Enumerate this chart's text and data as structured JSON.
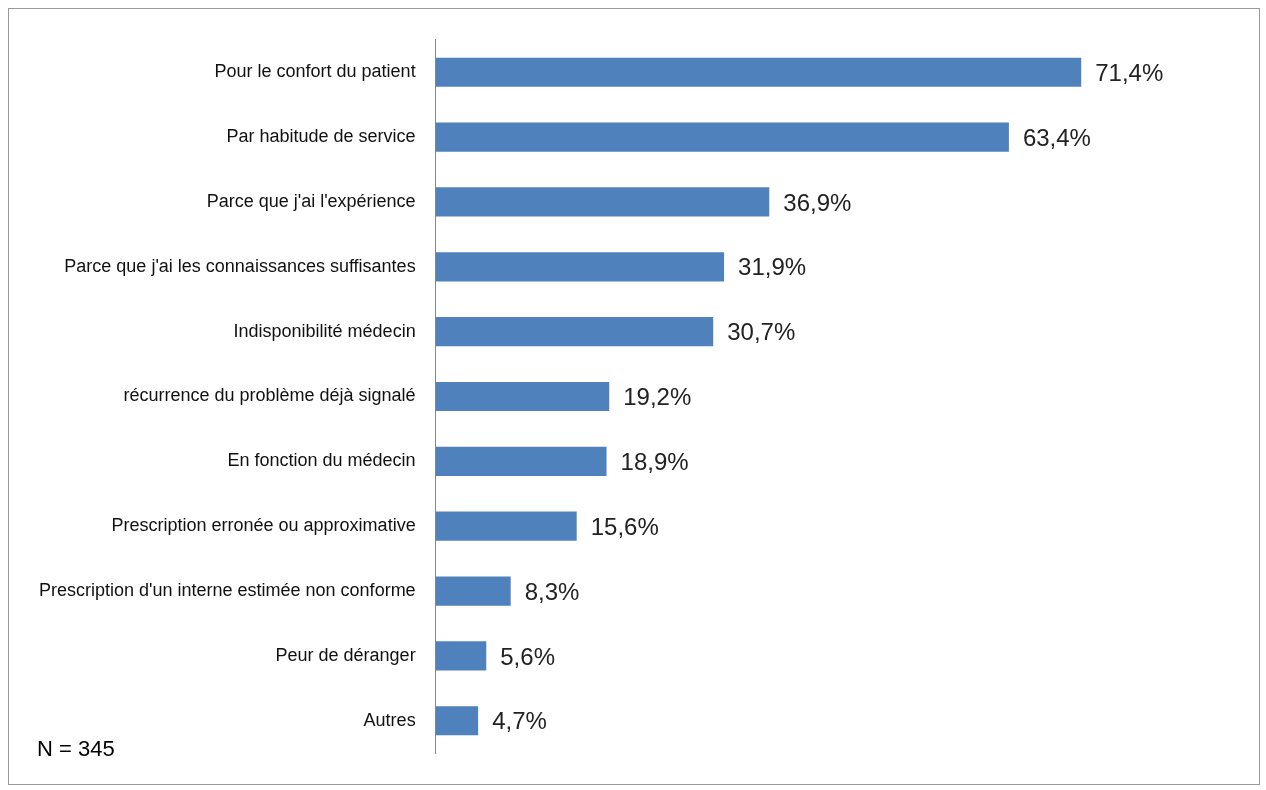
{
  "chart_data": {
    "type": "bar",
    "orientation": "horizontal",
    "categories": [
      "Pour le confort du patient",
      "Par habitude de service",
      "Parce que j'ai l'expérience",
      "Parce que j'ai les connaissances suffisantes",
      "Indisponibilité médecin",
      "récurrence du problème déjà signalé",
      "En fonction du médecin",
      "Prescription erronée ou approximative",
      "Prescription d'un interne estimée non conforme",
      "Peur de déranger",
      "Autres"
    ],
    "values": [
      71.4,
      63.4,
      36.9,
      31.9,
      30.7,
      19.2,
      18.9,
      15.6,
      8.3,
      5.6,
      4.7
    ],
    "value_labels": [
      "71,4%",
      "63,4%",
      "36,9%",
      "31,9%",
      "30,7%",
      "19,2%",
      "18,9%",
      "15,6%",
      "8,3%",
      "5,6%",
      "4,7%"
    ],
    "color": "#4f81bd",
    "grid": false,
    "legend": false,
    "annotations": [
      "N = 345"
    ]
  }
}
